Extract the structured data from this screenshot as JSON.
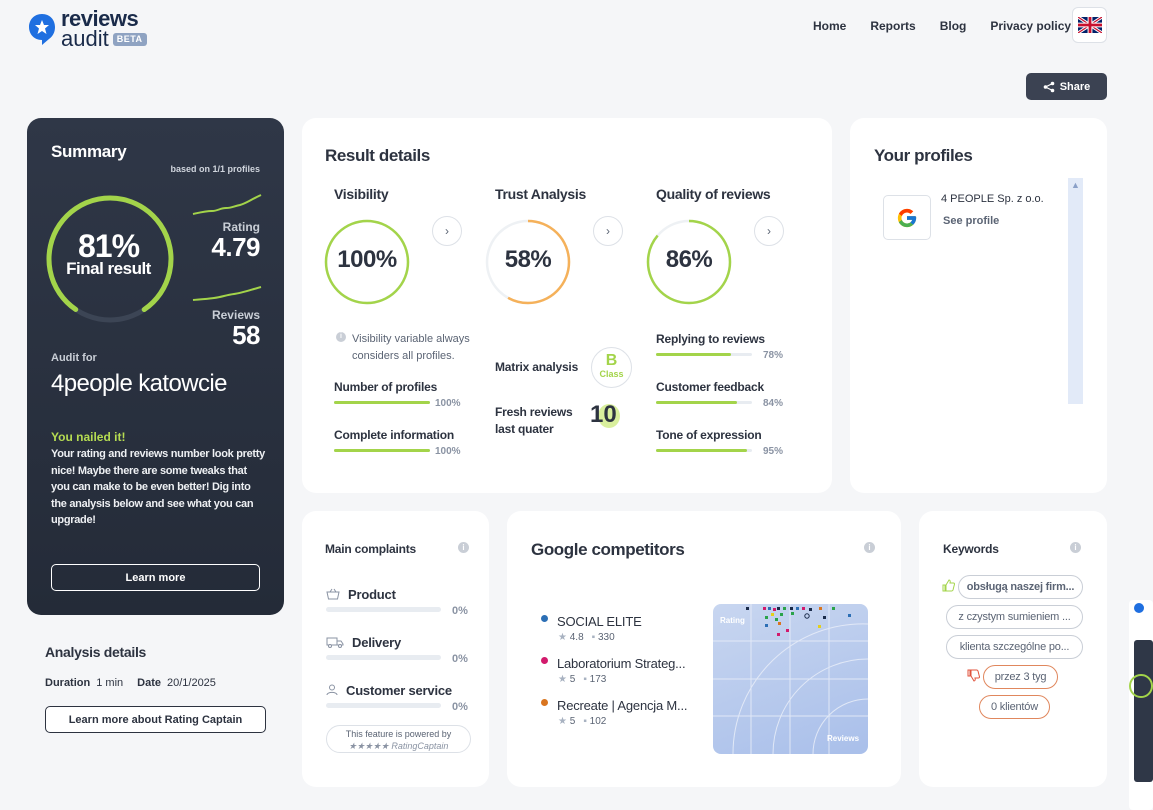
{
  "header": {
    "logo_top": "reviews",
    "logo_bottom": "audit",
    "badge": "BETA",
    "nav": [
      "Home",
      "Reports",
      "Blog",
      "Privacy policy"
    ],
    "language": "English (UK flag)",
    "share_label": "Share"
  },
  "summary": {
    "title": "Summary",
    "based_on": "based on 1/1 profiles",
    "final_pct": "81%",
    "final_label": "Final result",
    "final_value": 0.81,
    "rating_label": "Rating",
    "rating_value": "4.79",
    "reviews_label": "Reviews",
    "reviews_value": "58",
    "audit_for_label": "Audit for",
    "audit_name": "4people katowcie",
    "nailed_title": "You nailed it!",
    "nailed_text": "Your rating and reviews number look pretty nice! Maybe there are some tweaks that you can make to be even better! Dig into the analysis below and see what you can upgrade!",
    "learn_more": "Learn more"
  },
  "analysis": {
    "title": "Analysis details",
    "duration_label": "Duration",
    "duration_value": "1 min",
    "date_label": "Date",
    "date_value": "20/1/2025",
    "button": "Learn more about Rating Captain"
  },
  "result": {
    "title": "Result details",
    "visibility": {
      "title": "Visibility",
      "value": "100%",
      "fraction": 1.0,
      "note": "Visibility variable always considers all profiles.",
      "metrics": [
        {
          "label": "Number of profiles",
          "pct": "100%",
          "value": 1.0
        },
        {
          "label": "Complete information",
          "pct": "100%",
          "value": 1.0
        }
      ]
    },
    "trust": {
      "title": "Trust Analysis",
      "value": "58%",
      "fraction": 0.58,
      "matrix_label": "Matrix analysis",
      "matrix_class": "B",
      "class_word": "Class",
      "fresh_label": "Fresh reviews last quater",
      "fresh_value": "10"
    },
    "quality": {
      "title": "Quality of reviews",
      "value": "86%",
      "fraction": 0.86,
      "metrics": [
        {
          "label": "Replying to reviews",
          "pct": "78%",
          "value": 0.78
        },
        {
          "label": "Customer feedback",
          "pct": "84%",
          "value": 0.84
        },
        {
          "label": "Tone of expression",
          "pct": "95%",
          "value": 0.95
        }
      ]
    }
  },
  "profiles": {
    "title": "Your profiles",
    "items": [
      {
        "name": "4 PEOPLE Sp. z o.o.",
        "link": "See profile",
        "icon": "google-icon"
      }
    ]
  },
  "complaints": {
    "title": "Main complaints",
    "items": [
      {
        "label": "Product",
        "pct": "0%",
        "icon": "basket-icon"
      },
      {
        "label": "Delivery",
        "pct": "0%",
        "icon": "truck-icon"
      },
      {
        "label": "Customer service",
        "pct": "0%",
        "icon": "person-icon"
      }
    ],
    "powered_line1": "This feature is powered by",
    "powered_line2": "★★★★★ RatingCaptain"
  },
  "competitors": {
    "title": "Google competitors",
    "items": [
      {
        "name": "SOCIAL ELITE",
        "rating": "4.8",
        "reviews": "330",
        "color": "#2c6fb5"
      },
      {
        "name": "Laboratorium Strateg...",
        "rating": "5",
        "reviews": "173",
        "color": "#d21a6c"
      },
      {
        "name": "Recreate | Agencja M...",
        "rating": "5",
        "reviews": "102",
        "color": "#d9751f"
      }
    ],
    "map_rating_label": "Rating",
    "map_reviews_label": "Reviews"
  },
  "keywords": {
    "title": "Keywords",
    "items": [
      {
        "text": "obsługą naszej firm...",
        "sentiment": "positive"
      },
      {
        "text": "z czystym sumieniem ...",
        "sentiment": "neutral"
      },
      {
        "text": "klienta szczególne po...",
        "sentiment": "neutral"
      },
      {
        "text": "przez 3 tyg",
        "sentiment": "negative"
      },
      {
        "text": "0 klientów",
        "sentiment": "negative"
      }
    ]
  },
  "colors": {
    "accent_green": "#a3d44a",
    "dark_panel": "#2b3241",
    "negative_orange": "#e0875d",
    "trust_orange": "#f5b15a"
  }
}
